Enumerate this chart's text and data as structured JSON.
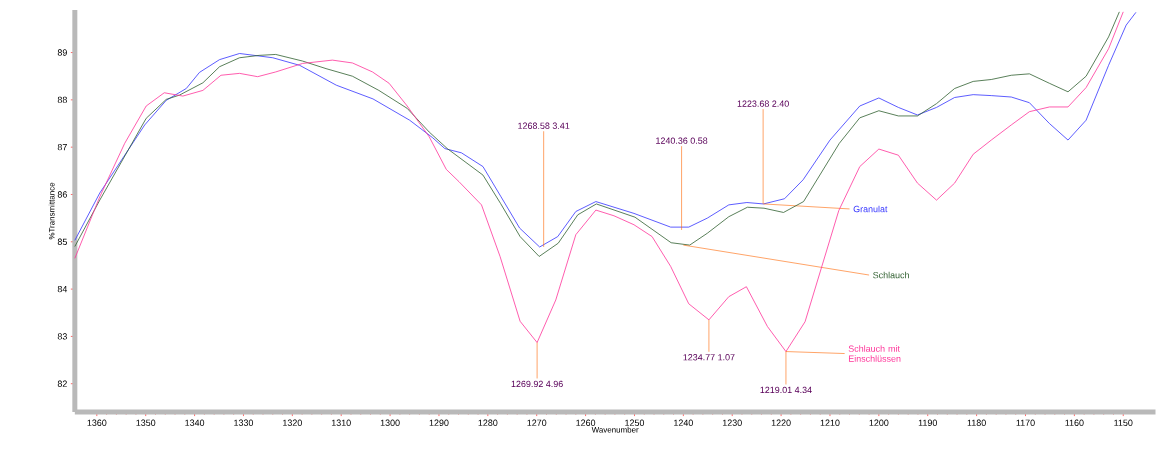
{
  "chart_data": {
    "type": "line",
    "xlabel": "Wavenumber",
    "ylabel": "%Transmittance",
    "xlim": [
      1364.5,
      1143.4
    ],
    "ylim": [
      81.4,
      89.9
    ],
    "xticks": [
      1360,
      1350,
      1340,
      1330,
      1320,
      1310,
      1300,
      1290,
      1280,
      1270,
      1260,
      1250,
      1240,
      1230,
      1220,
      1210,
      1200,
      1190,
      1180,
      1170,
      1160,
      1150
    ],
    "yticks": [
      82,
      83,
      84,
      85,
      86,
      87,
      88,
      89
    ],
    "grid": false,
    "legend": false,
    "marker": "none",
    "line_style": "solid",
    "series": [
      {
        "name": "Granulat",
        "color": "#3333ff",
        "x": [
          1364.5,
          1359.4,
          1350.2,
          1345.8,
          1341.7,
          1339,
          1334.9,
          1330.8,
          1324,
          1318.5,
          1311,
          1303.5,
          1296,
          1291.3,
          1288.8,
          1285.4,
          1281,
          1277.3,
          1273.5,
          1269.4,
          1265.7,
          1262,
          1257.9,
          1250.1,
          1242.6,
          1238.9,
          1235.1,
          1230.7,
          1227,
          1223.6,
          1219.3,
          1215.5,
          1210,
          1203.9,
          1200,
          1196,
          1192.1,
          1188.2,
          1184.5,
          1180.7,
          1177,
          1172.9,
          1169.2,
          1165.1,
          1161.3,
          1157.6,
          1153,
          1149.4,
          1147.4
        ],
        "values": [
          85.03,
          86.03,
          87.47,
          87.99,
          88.24,
          88.58,
          88.85,
          88.98,
          88.89,
          88.73,
          88.31,
          88.02,
          87.57,
          87.2,
          86.97,
          86.88,
          86.59,
          85.95,
          85.29,
          84.89,
          85.11,
          85.64,
          85.85,
          85.6,
          85.31,
          85.31,
          85.5,
          85.78,
          85.83,
          85.8,
          85.91,
          86.31,
          87.15,
          87.87,
          88.04,
          87.84,
          87.68,
          87.84,
          88.05,
          88.11,
          88.09,
          88.06,
          87.94,
          87.5,
          87.15,
          87.57,
          88.73,
          89.58,
          89.85
        ]
      },
      {
        "name": "Schlauch",
        "color": "#2f5f2f",
        "x": [
          1364.5,
          1359.4,
          1349.9,
          1345.8,
          1343.1,
          1338.3,
          1334.9,
          1330.8,
          1326.8,
          1323.4,
          1317.9,
          1313.1,
          1307.7,
          1302.3,
          1296.5,
          1292,
          1288.3,
          1281,
          1277.4,
          1273.4,
          1269.5,
          1265.6,
          1261.6,
          1257.8,
          1249.9,
          1242.5,
          1238.7,
          1235.1,
          1230.7,
          1226.9,
          1223.5,
          1219.5,
          1215.4,
          1208.1,
          1203.9,
          1200,
          1196,
          1192.1,
          1188.2,
          1184.5,
          1180.7,
          1177,
          1172.9,
          1169.2,
          1165.1,
          1161.3,
          1157.6,
          1153,
          1150.8
        ],
        "values": [
          84.9,
          85.88,
          87.61,
          88.01,
          88.1,
          88.36,
          88.7,
          88.89,
          88.94,
          88.96,
          88.82,
          88.66,
          88.5,
          88.2,
          87.82,
          87.32,
          86.97,
          86.41,
          85.81,
          85.11,
          84.69,
          84.97,
          85.57,
          85.8,
          85.52,
          84.98,
          84.93,
          85.18,
          85.53,
          85.73,
          85.71,
          85.62,
          85.85,
          87.08,
          87.62,
          87.77,
          87.66,
          87.66,
          87.92,
          88.24,
          88.39,
          88.43,
          88.52,
          88.55,
          88.35,
          88.17,
          88.5,
          89.33,
          89.86
        ]
      },
      {
        "name": "Schlauch mit Einschlüssen",
        "color": "#ff3399",
        "x": [
          1364.5,
          1359.4,
          1354.3,
          1349.9,
          1346.2,
          1342.4,
          1338.3,
          1334.6,
          1330.8,
          1327.1,
          1323.4,
          1317.9,
          1311.8,
          1307.7,
          1303.6,
          1300.2,
          1296.5,
          1292,
          1288.5,
          1285.9,
          1281.3,
          1277.5,
          1273.4,
          1269.92,
          1266.1,
          1262,
          1257.9,
          1254.2,
          1250.1,
          1246.4,
          1242.6,
          1238.9,
          1234.77,
          1230.7,
          1227.1,
          1222.8,
          1219.01,
          1215.1,
          1208.2,
          1203.9,
          1200,
          1196,
          1192.1,
          1188.2,
          1184.5,
          1180.7,
          1177,
          1172.9,
          1169.2,
          1165.1,
          1161.3,
          1157.6,
          1153,
          1150
        ],
        "values": [
          84.65,
          85.95,
          87.08,
          87.87,
          88.15,
          88.08,
          88.2,
          88.52,
          88.56,
          88.49,
          88.59,
          88.77,
          88.84,
          88.78,
          88.59,
          88.35,
          87.87,
          87.22,
          86.53,
          86.27,
          85.78,
          84.69,
          83.32,
          82.87,
          83.77,
          85.15,
          85.67,
          85.55,
          85.36,
          85.11,
          84.48,
          83.69,
          83.35,
          83.84,
          84.05,
          83.21,
          82.68,
          83.31,
          85.66,
          86.59,
          86.96,
          86.83,
          86.24,
          85.88,
          86.24,
          86.85,
          87.15,
          87.47,
          87.75,
          87.85,
          87.85,
          88.26,
          89.08,
          89.86
        ]
      }
    ],
    "annotations": [
      {
        "text": "1268.58  3.41",
        "x": 1268.58,
        "y": 84.89
      },
      {
        "text": "1240.36  0.58",
        "x": 1240.36,
        "y": 85.25
      },
      {
        "text": "1223.68  2.40",
        "x": 1223.68,
        "y": 85.8
      },
      {
        "text": "1269.92  4.96",
        "x": 1269.92,
        "y": 82.87
      },
      {
        "text": "1234.77  1.07",
        "x": 1234.77,
        "y": 83.35
      },
      {
        "text": "1219.01  4.34",
        "x": 1219.01,
        "y": 82.68
      }
    ]
  }
}
